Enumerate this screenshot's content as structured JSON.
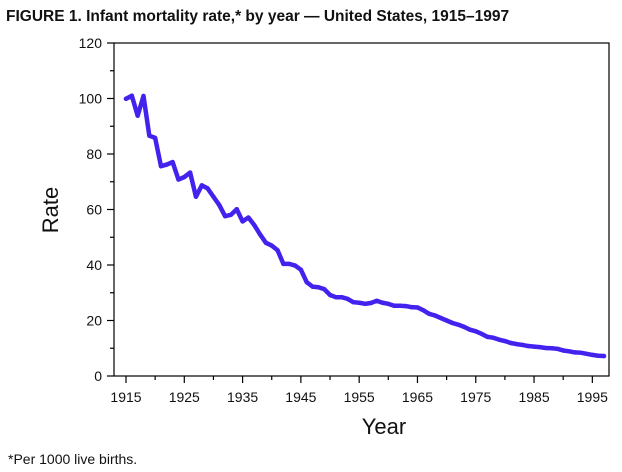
{
  "title": "FIGURE 1. Infant mortality rate,* by year — United States, 1915–1997",
  "footnote": "*Per 1000 live births.",
  "chart_data": {
    "type": "line",
    "title": "FIGURE 1. Infant mortality rate,* by year — United States, 1915–1997",
    "xlabel": "Year",
    "ylabel": "Rate",
    "xlim": [
      1915,
      1997
    ],
    "ylim": [
      0,
      120
    ],
    "xticks": [
      1915,
      1925,
      1935,
      1945,
      1955,
      1965,
      1975,
      1985,
      1995
    ],
    "yticks": [
      0,
      20,
      40,
      60,
      80,
      100,
      120
    ],
    "grid": false,
    "line_color": "#4422ee",
    "x": [
      1915,
      1916,
      1917,
      1918,
      1919,
      1920,
      1921,
      1922,
      1923,
      1924,
      1925,
      1926,
      1927,
      1928,
      1929,
      1930,
      1931,
      1932,
      1933,
      1934,
      1935,
      1936,
      1937,
      1938,
      1939,
      1940,
      1941,
      1942,
      1943,
      1944,
      1945,
      1946,
      1947,
      1948,
      1949,
      1950,
      1951,
      1952,
      1953,
      1954,
      1955,
      1956,
      1957,
      1958,
      1959,
      1960,
      1961,
      1962,
      1963,
      1964,
      1965,
      1966,
      1967,
      1968,
      1969,
      1970,
      1971,
      1972,
      1973,
      1974,
      1975,
      1976,
      1977,
      1978,
      1979,
      1980,
      1981,
      1982,
      1983,
      1984,
      1985,
      1986,
      1987,
      1988,
      1989,
      1990,
      1991,
      1992,
      1993,
      1994,
      1995,
      1996,
      1997
    ],
    "y": [
      99.9,
      101.0,
      93.8,
      100.9,
      86.6,
      85.8,
      75.6,
      76.2,
      77.1,
      70.8,
      71.7,
      73.3,
      64.6,
      68.7,
      67.6,
      64.6,
      61.6,
      57.6,
      58.1,
      60.1,
      55.7,
      57.1,
      54.4,
      51.0,
      48.0,
      47.0,
      45.3,
      40.4,
      40.4,
      39.8,
      38.3,
      33.8,
      32.2,
      32.0,
      31.3,
      29.2,
      28.4,
      28.4,
      27.8,
      26.6,
      26.4,
      26.0,
      26.3,
      27.1,
      26.4,
      26.0,
      25.3,
      25.3,
      25.2,
      24.8,
      24.7,
      23.7,
      22.4,
      21.8,
      20.9,
      20.0,
      19.1,
      18.5,
      17.7,
      16.7,
      16.1,
      15.2,
      14.1,
      13.8,
      13.1,
      12.6,
      11.9,
      11.5,
      11.2,
      10.8,
      10.6,
      10.4,
      10.1,
      10.0,
      9.8,
      9.2,
      8.9,
      8.5,
      8.4,
      8.0,
      7.6,
      7.3,
      7.2
    ]
  }
}
